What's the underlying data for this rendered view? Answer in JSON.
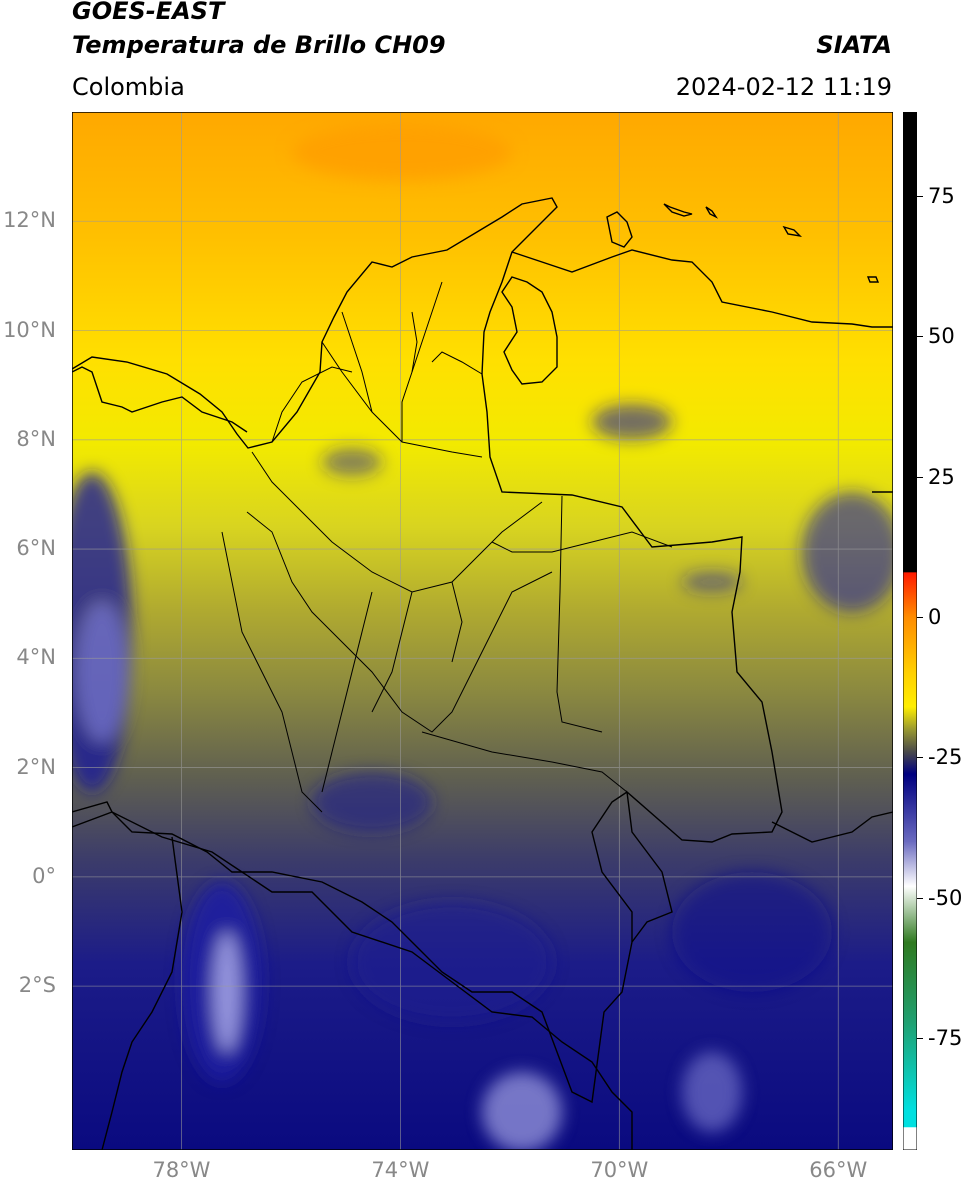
{
  "header": {
    "satellite": "GOES-EAST",
    "product": "Temperatura de Brillo CH09",
    "region": "Colombia",
    "agency": "SIATA",
    "datetime": "2024-02-12 11:19"
  },
  "map": {
    "lon_range": [
      -80,
      -65
    ],
    "lat_range": [
      -5,
      14
    ],
    "lat_ticks": [
      {
        "value": 12,
        "label": "12°N"
      },
      {
        "value": 10,
        "label": "10°N"
      },
      {
        "value": 8,
        "label": "8°N"
      },
      {
        "value": 6,
        "label": "6°N"
      },
      {
        "value": 4,
        "label": "4°N"
      },
      {
        "value": 2,
        "label": "2°N"
      },
      {
        "value": 0,
        "label": "0°"
      },
      {
        "value": -2,
        "label": "2°S"
      }
    ],
    "lon_ticks": [
      {
        "value": -78,
        "label": "78°W"
      },
      {
        "value": -74,
        "label": "74°W"
      },
      {
        "value": -70,
        "label": "70°W"
      },
      {
        "value": -66,
        "label": "66°W"
      }
    ]
  },
  "colorbar": {
    "range": [
      -95,
      90
    ],
    "ticks": [
      {
        "value": 75,
        "label": "75"
      },
      {
        "value": 50,
        "label": "50"
      },
      {
        "value": 25,
        "label": "25"
      },
      {
        "value": 0,
        "label": "0"
      },
      {
        "value": -25,
        "label": "-25"
      },
      {
        "value": -50,
        "label": "-50"
      },
      {
        "value": -75,
        "label": "-75"
      }
    ],
    "stops": [
      {
        "value": 90,
        "color": "#000000"
      },
      {
        "value": 8,
        "color": "#000000"
      },
      {
        "value": 7.9,
        "color": "#ff1a00"
      },
      {
        "value": 0,
        "color": "#ff8c00"
      },
      {
        "value": -10,
        "color": "#ffd000"
      },
      {
        "value": -16,
        "color": "#ffee00"
      },
      {
        "value": -20,
        "color": "#9a9a30"
      },
      {
        "value": -24,
        "color": "#4a4a4a"
      },
      {
        "value": -28,
        "color": "#000080"
      },
      {
        "value": -40,
        "color": "#6a6ac0"
      },
      {
        "value": -48,
        "color": "#ffffff"
      },
      {
        "value": -58,
        "color": "#2f7a20"
      },
      {
        "value": -72,
        "color": "#20a070"
      },
      {
        "value": -88,
        "color": "#00e0e0"
      },
      {
        "value": -90.9,
        "color": "#00e0e0"
      },
      {
        "value": -91,
        "color": "#ffffff"
      },
      {
        "value": -95,
        "color": "#ffffff"
      }
    ]
  }
}
